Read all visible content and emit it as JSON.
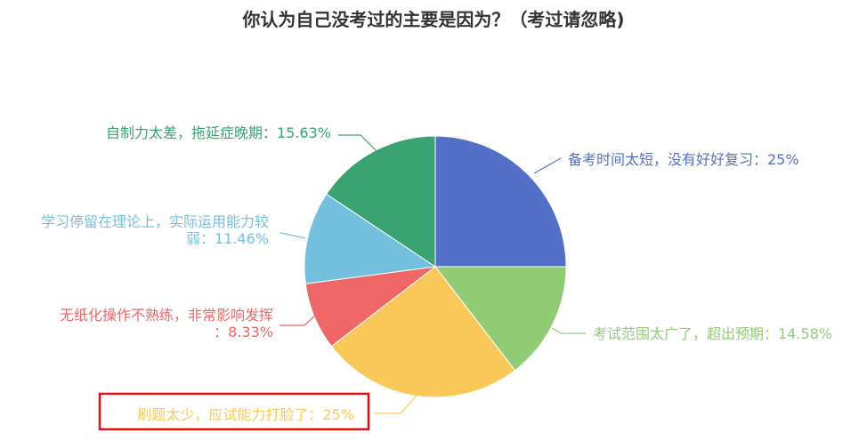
{
  "chart_data": {
    "type": "pie",
    "title": "你认为自己没考过的主要是因为？（考过请忽略)",
    "slices": [
      {
        "name": "备考时间太短，没有好好复习",
        "value": 25,
        "label_lines": [
          "备考时间太短，没有好好复习：25%"
        ],
        "color": "#5470c6"
      },
      {
        "name": "考试范围太广了，超出预期",
        "value": 14.58,
        "label_lines": [
          "考试范围太广了，超出预期：14.58%"
        ],
        "color": "#91cc75"
      },
      {
        "name": "刷题太少，应试能力打脸了",
        "value": 25,
        "label_lines": [
          "刷题太少，应试能力打脸了：25%"
        ],
        "color": "#fac858"
      },
      {
        "name": "无纸化操作不熟练，非常影响发挥",
        "value": 8.33,
        "label_lines": [
          "无纸化操作不熟练，非常影响发挥",
          "：8.33%"
        ],
        "color": "#ee6666"
      },
      {
        "name": "学习停留在理论上，实际运用能力较弱",
        "value": 11.46,
        "label_lines": [
          "学习停留在理论上，实际运用能力较",
          "弱：11.46%"
        ],
        "color": "#73c0de"
      },
      {
        "name": "自制力太差，拖延症晚期",
        "value": 15.63,
        "label_lines": [
          "自制力太差，拖延症晚期：15.63%"
        ],
        "color": "#3ba272"
      }
    ],
    "highlight_color": "#e01010"
  }
}
